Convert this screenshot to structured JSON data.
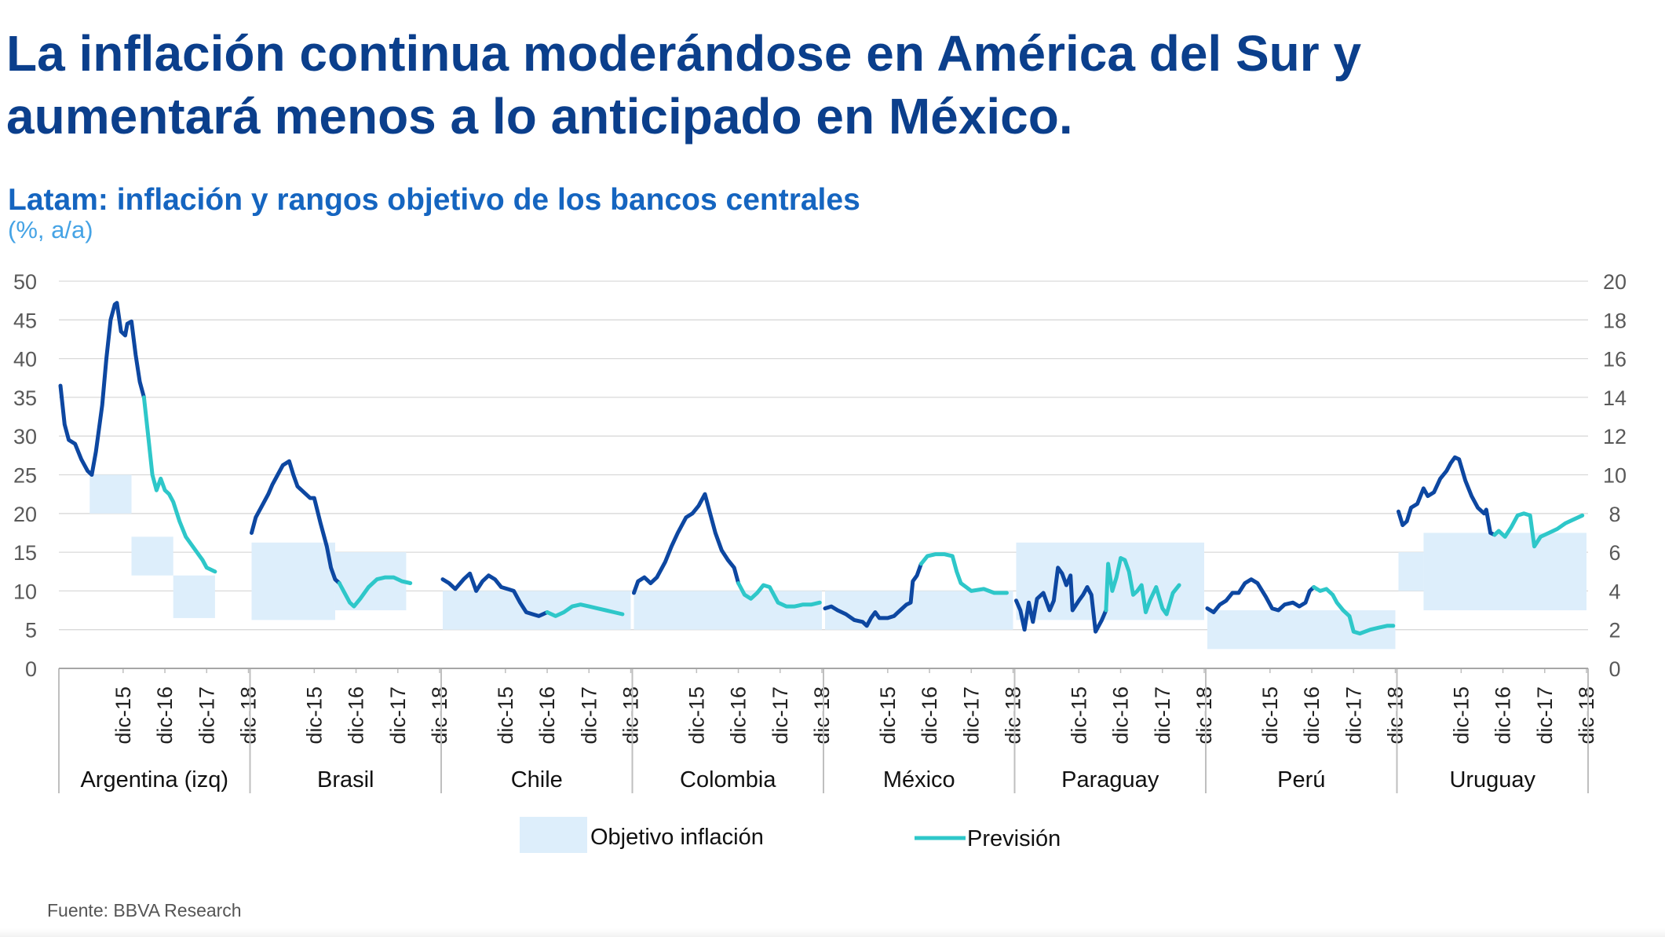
{
  "headline": {
    "line1": "La inflación continua moderándose en América del Sur y",
    "line2": "aumentará menos a lo anticipado en México."
  },
  "colors": {
    "headline": "#0b3f8c",
    "title": "#1565c0",
    "subtitle": "#45a3e5",
    "historical": "#0d47a1",
    "forecast": "#2ec7c9",
    "target": "#ddeefb",
    "grid": "#d9d9d9",
    "axis_text": "#595959",
    "separator": "#bfbfbf"
  },
  "source": "Fuente: BBVA Research",
  "chart_data": {
    "type": "line",
    "title": "Latam: inflación y rangos objetivo de los bancos centrales",
    "subtitle": "(%, a/a)",
    "y_left": {
      "min": 0,
      "max": 50,
      "ticks": [
        0,
        5,
        10,
        15,
        20,
        25,
        30,
        35,
        40,
        45,
        50
      ],
      "note": "Argentina (izq)"
    },
    "y_right": {
      "min": 0,
      "max": 20,
      "ticks": [
        0,
        2,
        4,
        6,
        8,
        10,
        12,
        14,
        16,
        18,
        20
      ]
    },
    "x_ticks": [
      "dic-15",
      "dic-16",
      "dic-17",
      "dic-18"
    ],
    "x_domain_note": "each panel spans jun-2014 to dic-2018 (t from 0 to 4.5 years)",
    "legend": {
      "target": "Objetivo inflación",
      "forecast": "Previsión"
    },
    "countries": [
      {
        "name": "Argentina (izq)",
        "axis": "left",
        "targets": [
          {
            "from": 0.7,
            "to": 1.7,
            "low": 20,
            "high": 25
          },
          {
            "from": 1.7,
            "to": 2.7,
            "low": 12,
            "high": 17
          },
          {
            "from": 2.7,
            "to": 3.7,
            "low": 6.5,
            "high": 12
          }
        ],
        "historical": [
          [
            0,
            36.5
          ],
          [
            0.1,
            31.5
          ],
          [
            0.2,
            29.5
          ],
          [
            0.35,
            29
          ],
          [
            0.5,
            27
          ],
          [
            0.65,
            25.5
          ],
          [
            0.75,
            25
          ],
          [
            0.85,
            28
          ],
          [
            1.0,
            34
          ],
          [
            1.1,
            40
          ],
          [
            1.2,
            45
          ],
          [
            1.3,
            47
          ],
          [
            1.35,
            47.2
          ],
          [
            1.45,
            43.5
          ],
          [
            1.55,
            43
          ],
          [
            1.6,
            44.5
          ],
          [
            1.7,
            44.8
          ],
          [
            1.8,
            40.5
          ],
          [
            1.9,
            37
          ],
          [
            2.0,
            35
          ]
        ],
        "forecast": [
          [
            2.0,
            35
          ],
          [
            2.1,
            30
          ],
          [
            2.2,
            25
          ],
          [
            2.3,
            23
          ],
          [
            2.4,
            24.5
          ],
          [
            2.5,
            23
          ],
          [
            2.6,
            22.5
          ],
          [
            2.7,
            21.5
          ],
          [
            2.85,
            19
          ],
          [
            3.0,
            17
          ],
          [
            3.2,
            15.5
          ],
          [
            3.4,
            14
          ],
          [
            3.5,
            13
          ],
          [
            3.7,
            12.5
          ]
        ]
      },
      {
        "name": "Brasil",
        "axis": "right",
        "targets": [
          {
            "from": 0,
            "to": 2.0,
            "low": 2.5,
            "high": 6.5
          },
          {
            "from": 2.0,
            "to": 3.7,
            "low": 3.0,
            "high": 6.0
          }
        ],
        "historical": [
          [
            0,
            7
          ],
          [
            0.1,
            7.8
          ],
          [
            0.25,
            8.4
          ],
          [
            0.4,
            9.0
          ],
          [
            0.5,
            9.5
          ],
          [
            0.6,
            9.9
          ],
          [
            0.75,
            10.5
          ],
          [
            0.9,
            10.7
          ],
          [
            1.0,
            10.0
          ],
          [
            1.1,
            9.4
          ],
          [
            1.25,
            9.1
          ],
          [
            1.4,
            8.8
          ],
          [
            1.5,
            8.8
          ],
          [
            1.65,
            7.5
          ],
          [
            1.8,
            6.3
          ],
          [
            1.9,
            5.2
          ],
          [
            2.0,
            4.6
          ],
          [
            2.1,
            4.4
          ]
        ],
        "forecast": [
          [
            2.1,
            4.4
          ],
          [
            2.2,
            4.0
          ],
          [
            2.35,
            3.4
          ],
          [
            2.45,
            3.2
          ],
          [
            2.6,
            3.6
          ],
          [
            2.8,
            4.2
          ],
          [
            3.0,
            4.6
          ],
          [
            3.2,
            4.7
          ],
          [
            3.4,
            4.7
          ],
          [
            3.6,
            4.5
          ],
          [
            3.8,
            4.4
          ]
        ]
      },
      {
        "name": "Chile",
        "axis": "right",
        "targets": [
          {
            "from": 0,
            "to": 4.5,
            "low": 2.0,
            "high": 4.0
          }
        ],
        "historical": [
          [
            0,
            4.6
          ],
          [
            0.15,
            4.4
          ],
          [
            0.3,
            4.1
          ],
          [
            0.5,
            4.6
          ],
          [
            0.65,
            4.9
          ],
          [
            0.8,
            4.0
          ],
          [
            0.95,
            4.5
          ],
          [
            1.1,
            4.8
          ],
          [
            1.25,
            4.6
          ],
          [
            1.4,
            4.2
          ],
          [
            1.55,
            4.1
          ],
          [
            1.7,
            4.0
          ],
          [
            1.85,
            3.4
          ],
          [
            2.0,
            2.9
          ],
          [
            2.15,
            2.8
          ],
          [
            2.3,
            2.7
          ],
          [
            2.5,
            2.9
          ]
        ],
        "forecast": [
          [
            2.5,
            2.9
          ],
          [
            2.7,
            2.7
          ],
          [
            2.9,
            2.9
          ],
          [
            3.1,
            3.2
          ],
          [
            3.3,
            3.3
          ],
          [
            3.5,
            3.2
          ],
          [
            3.7,
            3.1
          ],
          [
            3.9,
            3.0
          ],
          [
            4.1,
            2.9
          ],
          [
            4.3,
            2.8
          ]
        ]
      },
      {
        "name": "Colombia",
        "axis": "right",
        "targets": [
          {
            "from": 0,
            "to": 4.5,
            "low": 2.0,
            "high": 4.0
          }
        ],
        "historical": [
          [
            0,
            3.9
          ],
          [
            0.1,
            4.5
          ],
          [
            0.25,
            4.7
          ],
          [
            0.4,
            4.4
          ],
          [
            0.55,
            4.7
          ],
          [
            0.75,
            5.5
          ],
          [
            0.9,
            6.3
          ],
          [
            1.05,
            7.0
          ],
          [
            1.25,
            7.8
          ],
          [
            1.4,
            8.0
          ],
          [
            1.55,
            8.4
          ],
          [
            1.7,
            9.0
          ],
          [
            1.8,
            8.2
          ],
          [
            1.95,
            7.0
          ],
          [
            2.1,
            6.1
          ],
          [
            2.25,
            5.6
          ],
          [
            2.4,
            5.2
          ],
          [
            2.5,
            4.4
          ]
        ],
        "forecast": [
          [
            2.5,
            4.4
          ],
          [
            2.65,
            3.8
          ],
          [
            2.8,
            3.6
          ],
          [
            2.95,
            3.9
          ],
          [
            3.1,
            4.3
          ],
          [
            3.25,
            4.2
          ],
          [
            3.45,
            3.4
          ],
          [
            3.65,
            3.2
          ],
          [
            3.85,
            3.2
          ],
          [
            4.05,
            3.3
          ],
          [
            4.25,
            3.3
          ],
          [
            4.45,
            3.4
          ]
        ]
      },
      {
        "name": "México",
        "axis": "right",
        "targets": [
          {
            "from": 0,
            "to": 4.5,
            "low": 2.0,
            "high": 4.0
          }
        ],
        "historical": [
          [
            0,
            3.1
          ],
          [
            0.15,
            3.2
          ],
          [
            0.3,
            3.0
          ],
          [
            0.5,
            2.8
          ],
          [
            0.7,
            2.5
          ],
          [
            0.9,
            2.4
          ],
          [
            1.0,
            2.2
          ],
          [
            1.1,
            2.6
          ],
          [
            1.2,
            2.9
          ],
          [
            1.3,
            2.6
          ],
          [
            1.5,
            2.6
          ],
          [
            1.65,
            2.7
          ],
          [
            1.8,
            3.0
          ],
          [
            1.95,
            3.3
          ],
          [
            2.05,
            3.4
          ],
          [
            2.1,
            4.5
          ],
          [
            2.2,
            4.8
          ],
          [
            2.3,
            5.4
          ]
        ],
        "forecast": [
          [
            2.3,
            5.4
          ],
          [
            2.45,
            5.8
          ],
          [
            2.65,
            5.9
          ],
          [
            2.85,
            5.9
          ],
          [
            3.05,
            5.8
          ],
          [
            3.15,
            5.0
          ],
          [
            3.25,
            4.4
          ],
          [
            3.5,
            4.0
          ],
          [
            3.8,
            4.1
          ],
          [
            4.05,
            3.9
          ],
          [
            4.35,
            3.9
          ]
        ]
      },
      {
        "name": "Paraguay",
        "axis": "right",
        "targets": [
          {
            "from": 0,
            "to": 4.5,
            "low": 2.5,
            "high": 6.5
          }
        ],
        "historical": [
          [
            0,
            3.5
          ],
          [
            0.1,
            3.0
          ],
          [
            0.2,
            2.0
          ],
          [
            0.3,
            3.4
          ],
          [
            0.4,
            2.4
          ],
          [
            0.5,
            3.6
          ],
          [
            0.65,
            3.9
          ],
          [
            0.8,
            3.0
          ],
          [
            0.9,
            3.5
          ],
          [
            1.0,
            5.2
          ],
          [
            1.1,
            4.9
          ],
          [
            1.2,
            4.3
          ],
          [
            1.3,
            4.8
          ],
          [
            1.35,
            3.0
          ],
          [
            1.5,
            3.5
          ],
          [
            1.6,
            3.8
          ],
          [
            1.7,
            4.2
          ],
          [
            1.8,
            3.8
          ],
          [
            1.9,
            1.9
          ],
          [
            2.05,
            2.5
          ],
          [
            2.15,
            3.0
          ]
        ],
        "forecast": [
          [
            2.15,
            3.0
          ],
          [
            2.2,
            5.4
          ],
          [
            2.3,
            4.0
          ],
          [
            2.4,
            4.7
          ],
          [
            2.5,
            5.7
          ],
          [
            2.6,
            5.6
          ],
          [
            2.7,
            5.0
          ],
          [
            2.8,
            3.8
          ],
          [
            2.9,
            4.0
          ],
          [
            3.0,
            4.3
          ],
          [
            3.1,
            2.9
          ],
          [
            3.2,
            3.5
          ],
          [
            3.35,
            4.2
          ],
          [
            3.5,
            3.1
          ],
          [
            3.6,
            2.8
          ],
          [
            3.75,
            3.9
          ],
          [
            3.9,
            4.3
          ]
        ]
      },
      {
        "name": "Perú",
        "axis": "right",
        "targets": [
          {
            "from": 0,
            "to": 4.5,
            "low": 1.0,
            "high": 3.0
          }
        ],
        "historical": [
          [
            0,
            3.1
          ],
          [
            0.15,
            2.9
          ],
          [
            0.3,
            3.3
          ],
          [
            0.45,
            3.5
          ],
          [
            0.6,
            3.9
          ],
          [
            0.75,
            3.9
          ],
          [
            0.9,
            4.4
          ],
          [
            1.05,
            4.6
          ],
          [
            1.2,
            4.4
          ],
          [
            1.4,
            3.7
          ],
          [
            1.55,
            3.1
          ],
          [
            1.7,
            3.0
          ],
          [
            1.85,
            3.3
          ],
          [
            2.05,
            3.4
          ],
          [
            2.2,
            3.2
          ],
          [
            2.35,
            3.4
          ],
          [
            2.45,
            4.0
          ],
          [
            2.55,
            4.2
          ]
        ],
        "forecast": [
          [
            2.55,
            4.2
          ],
          [
            2.7,
            4.0
          ],
          [
            2.85,
            4.1
          ],
          [
            3.0,
            3.8
          ],
          [
            3.1,
            3.4
          ],
          [
            3.25,
            3.0
          ],
          [
            3.4,
            2.7
          ],
          [
            3.5,
            1.9
          ],
          [
            3.65,
            1.8
          ],
          [
            3.9,
            2.0
          ],
          [
            4.1,
            2.1
          ],
          [
            4.3,
            2.2
          ],
          [
            4.45,
            2.2
          ]
        ]
      },
      {
        "name": "Uruguay",
        "axis": "right",
        "targets": [
          {
            "from": 0,
            "to": 0.6,
            "low": 4.0,
            "high": 6.0
          },
          {
            "from": 0.6,
            "to": 4.5,
            "low": 3.0,
            "high": 7.0
          }
        ],
        "historical": [
          [
            0,
            8.1
          ],
          [
            0.1,
            7.4
          ],
          [
            0.2,
            7.6
          ],
          [
            0.3,
            8.3
          ],
          [
            0.45,
            8.5
          ],
          [
            0.6,
            9.3
          ],
          [
            0.7,
            8.9
          ],
          [
            0.85,
            9.1
          ],
          [
            1.0,
            9.8
          ],
          [
            1.15,
            10.2
          ],
          [
            1.25,
            10.6
          ],
          [
            1.35,
            10.9
          ],
          [
            1.45,
            10.8
          ],
          [
            1.6,
            9.7
          ],
          [
            1.75,
            8.9
          ],
          [
            1.9,
            8.3
          ],
          [
            2.05,
            8.0
          ],
          [
            2.1,
            8.2
          ],
          [
            2.2,
            7.0
          ],
          [
            2.3,
            6.9
          ]
        ],
        "forecast": [
          [
            2.3,
            6.9
          ],
          [
            2.4,
            7.1
          ],
          [
            2.55,
            6.8
          ],
          [
            2.7,
            7.3
          ],
          [
            2.85,
            7.9
          ],
          [
            3.0,
            8.0
          ],
          [
            3.15,
            7.9
          ],
          [
            3.25,
            6.3
          ],
          [
            3.4,
            6.8
          ],
          [
            3.6,
            7.0
          ],
          [
            3.8,
            7.2
          ],
          [
            4.0,
            7.5
          ],
          [
            4.2,
            7.7
          ],
          [
            4.4,
            7.9
          ]
        ]
      }
    ]
  }
}
